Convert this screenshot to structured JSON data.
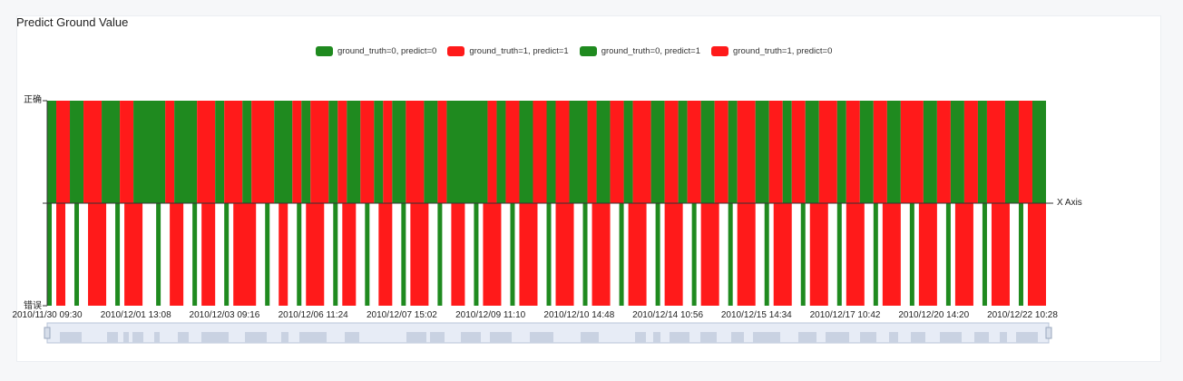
{
  "colors": {
    "correct": "#1f8a1f",
    "wrong": "#ff1a1a",
    "zoom_fill": "#e7ecf6",
    "zoom_border": "#b8c4d8"
  },
  "chart_data": {
    "type": "bar",
    "title": "Predict Ground Value",
    "xlabel": "X Axis",
    "y_categories": [
      "错误",
      "正确"
    ],
    "x_tick_labels": [
      "2010/11/30 09:30",
      "2010/12/01 13:08",
      "2010/12/03 09:16",
      "2010/12/06 11:24",
      "2010/12/07 15:02",
      "2010/12/09 11:10",
      "2010/12/10 14:48",
      "2010/12/14 10:56",
      "2010/12/15 14:34",
      "2010/12/17 10:42",
      "2010/12/20 14:20",
      "2010/12/22 10:28"
    ],
    "legend": [
      {
        "label": "ground_truth=0, predict=0",
        "color": "#1f8a1f"
      },
      {
        "label": "ground_truth=1, predict=1",
        "color": "#ff1a1a"
      },
      {
        "label": "ground_truth=0, predict=1",
        "color": "#1f8a1f"
      },
      {
        "label": "ground_truth=1, predict=0",
        "color": "#ff1a1a"
      }
    ],
    "top_segments": [
      [
        0.0,
        0.2,
        "g"
      ],
      [
        0.2,
        0.5,
        "r"
      ],
      [
        0.5,
        0.8,
        "g"
      ],
      [
        0.8,
        1.2,
        "r"
      ],
      [
        1.2,
        1.6,
        "g"
      ],
      [
        1.6,
        1.9,
        "r"
      ],
      [
        1.9,
        2.6,
        "g"
      ],
      [
        2.6,
        2.8,
        "r"
      ],
      [
        2.8,
        3.3,
        "g"
      ],
      [
        3.3,
        3.7,
        "r"
      ],
      [
        3.7,
        3.9,
        "g"
      ],
      [
        3.9,
        4.3,
        "r"
      ],
      [
        4.3,
        4.5,
        "g"
      ],
      [
        4.5,
        5.0,
        "r"
      ],
      [
        5.0,
        5.4,
        "g"
      ],
      [
        5.4,
        5.6,
        "r"
      ],
      [
        5.6,
        5.8,
        "g"
      ],
      [
        5.8,
        6.2,
        "r"
      ],
      [
        6.2,
        6.4,
        "g"
      ],
      [
        6.4,
        6.6,
        "r"
      ],
      [
        6.6,
        6.9,
        "g"
      ],
      [
        6.9,
        7.2,
        "r"
      ],
      [
        7.2,
        7.4,
        "g"
      ],
      [
        7.4,
        7.6,
        "r"
      ],
      [
        7.6,
        7.9,
        "g"
      ],
      [
        7.9,
        8.3,
        "r"
      ],
      [
        8.3,
        8.6,
        "g"
      ],
      [
        8.6,
        8.8,
        "r"
      ],
      [
        8.8,
        9.7,
        "g"
      ],
      [
        9.7,
        9.9,
        "r"
      ],
      [
        9.9,
        10.1,
        "g"
      ],
      [
        10.1,
        10.4,
        "r"
      ],
      [
        10.4,
        10.7,
        "g"
      ],
      [
        10.7,
        11.0,
        "r"
      ],
      [
        11.0,
        11.2,
        "g"
      ],
      [
        11.2,
        11.5,
        "r"
      ],
      [
        11.5,
        11.9,
        "g"
      ],
      [
        11.9,
        12.1,
        "r"
      ],
      [
        12.1,
        12.4,
        "g"
      ],
      [
        12.4,
        12.7,
        "r"
      ],
      [
        12.7,
        12.9,
        "g"
      ],
      [
        12.9,
        13.3,
        "r"
      ],
      [
        13.3,
        13.6,
        "g"
      ],
      [
        13.6,
        13.9,
        "r"
      ],
      [
        13.9,
        14.1,
        "g"
      ],
      [
        14.1,
        14.4,
        "r"
      ],
      [
        14.4,
        14.7,
        "g"
      ],
      [
        14.7,
        15.0,
        "r"
      ],
      [
        15.0,
        15.2,
        "g"
      ],
      [
        15.2,
        15.6,
        "r"
      ],
      [
        15.6,
        15.9,
        "g"
      ],
      [
        15.9,
        16.2,
        "r"
      ],
      [
        16.2,
        16.4,
        "g"
      ],
      [
        16.4,
        16.7,
        "r"
      ],
      [
        16.7,
        17.0,
        "g"
      ],
      [
        17.0,
        17.4,
        "r"
      ],
      [
        17.4,
        17.6,
        "g"
      ],
      [
        17.6,
        17.9,
        "r"
      ],
      [
        17.9,
        18.2,
        "g"
      ],
      [
        18.2,
        18.5,
        "r"
      ],
      [
        18.5,
        18.8,
        "g"
      ],
      [
        18.8,
        19.3,
        "r"
      ],
      [
        19.3,
        19.6,
        "g"
      ],
      [
        19.6,
        19.9,
        "r"
      ],
      [
        19.9,
        20.2,
        "g"
      ],
      [
        20.2,
        20.5,
        "r"
      ],
      [
        20.5,
        20.7,
        "g"
      ],
      [
        20.7,
        21.1,
        "r"
      ],
      [
        21.1,
        21.4,
        "g"
      ],
      [
        21.4,
        21.7,
        "r"
      ],
      [
        21.7,
        22.0,
        "g"
      ]
    ],
    "bottom_segments": [
      [
        0.0,
        0.1,
        "g"
      ],
      [
        0.2,
        0.4,
        "r"
      ],
      [
        0.6,
        0.7,
        "g"
      ],
      [
        0.9,
        1.3,
        "r"
      ],
      [
        1.5,
        1.6,
        "g"
      ],
      [
        1.7,
        2.1,
        "r"
      ],
      [
        2.4,
        2.5,
        "g"
      ],
      [
        2.7,
        3.0,
        "r"
      ],
      [
        3.2,
        3.3,
        "g"
      ],
      [
        3.4,
        3.7,
        "r"
      ],
      [
        3.9,
        4.0,
        "g"
      ],
      [
        4.1,
        4.6,
        "r"
      ],
      [
        4.8,
        4.9,
        "g"
      ],
      [
        5.1,
        5.3,
        "r"
      ],
      [
        5.5,
        5.6,
        "g"
      ],
      [
        5.7,
        6.1,
        "r"
      ],
      [
        6.3,
        6.4,
        "g"
      ],
      [
        6.5,
        6.8,
        "r"
      ],
      [
        7.0,
        7.1,
        "g"
      ],
      [
        7.3,
        7.6,
        "r"
      ],
      [
        7.8,
        7.9,
        "g"
      ],
      [
        8.0,
        8.4,
        "r"
      ],
      [
        8.6,
        8.7,
        "g"
      ],
      [
        8.9,
        9.2,
        "r"
      ],
      [
        9.4,
        9.5,
        "g"
      ],
      [
        9.6,
        10.0,
        "r"
      ],
      [
        10.2,
        10.3,
        "g"
      ],
      [
        10.4,
        10.8,
        "r"
      ],
      [
        11.0,
        11.1,
        "g"
      ],
      [
        11.2,
        11.6,
        "r"
      ],
      [
        11.8,
        11.9,
        "g"
      ],
      [
        12.0,
        12.4,
        "r"
      ],
      [
        12.6,
        12.7,
        "g"
      ],
      [
        12.8,
        13.2,
        "r"
      ],
      [
        13.4,
        13.5,
        "g"
      ],
      [
        13.6,
        14.0,
        "r"
      ],
      [
        14.2,
        14.3,
        "g"
      ],
      [
        14.4,
        14.8,
        "r"
      ],
      [
        15.0,
        15.1,
        "g"
      ],
      [
        15.2,
        15.6,
        "r"
      ],
      [
        15.8,
        15.9,
        "g"
      ],
      [
        16.0,
        16.4,
        "r"
      ],
      [
        16.6,
        16.7,
        "g"
      ],
      [
        16.8,
        17.2,
        "r"
      ],
      [
        17.4,
        17.5,
        "g"
      ],
      [
        17.6,
        18.0,
        "r"
      ],
      [
        18.2,
        18.3,
        "g"
      ],
      [
        18.4,
        18.8,
        "r"
      ],
      [
        19.0,
        19.1,
        "g"
      ],
      [
        19.2,
        19.6,
        "r"
      ],
      [
        19.8,
        19.9,
        "g"
      ],
      [
        20.0,
        20.4,
        "r"
      ],
      [
        20.6,
        20.7,
        "g"
      ],
      [
        20.8,
        21.2,
        "r"
      ],
      [
        21.4,
        21.5,
        "g"
      ],
      [
        21.6,
        22.0,
        "r"
      ]
    ]
  }
}
